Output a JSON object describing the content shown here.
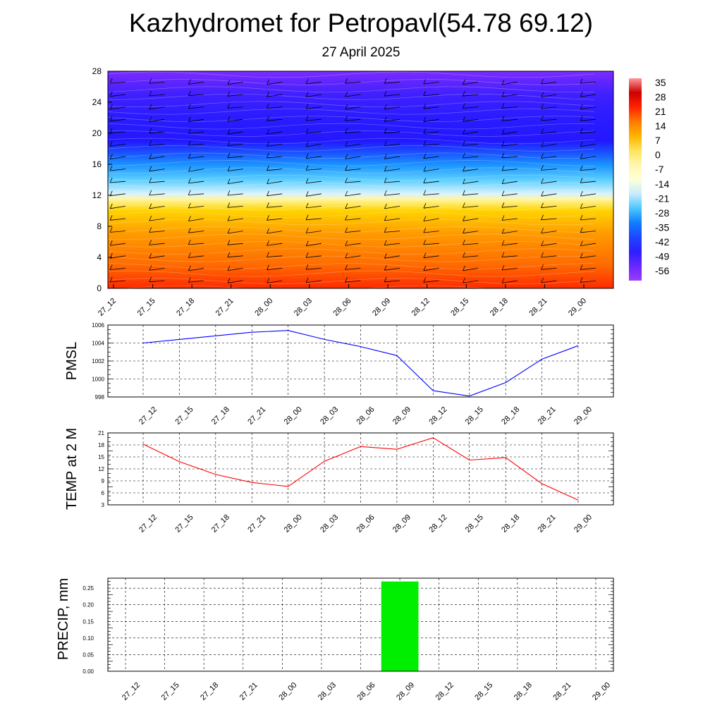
{
  "title": "Kazhydromet for Petropavl(54.78 69.12)",
  "subtitle": "27 April 2025",
  "chart_data": [
    {
      "type": "heatmap",
      "name": "cross-section",
      "x": [
        "27_12",
        "27_15",
        "27_18",
        "27_21",
        "28_00",
        "28_03",
        "28_06",
        "28_09",
        "28_12",
        "28_15",
        "28_18",
        "28_21",
        "29_00"
      ],
      "y_ticks": [
        0,
        4,
        8,
        12,
        16,
        20,
        24,
        28
      ],
      "ylim": [
        0,
        28
      ],
      "colorbar_ticks": [
        "35",
        "28",
        "21",
        "14",
        "7",
        "0",
        "-7",
        "-14",
        "-21",
        "-28",
        "-35",
        "-42",
        "-49",
        "-56"
      ],
      "colormap": [
        "#ff9999",
        "#cc0000",
        "#ff2200",
        "#ff7a00",
        "#ffb400",
        "#ffe35a",
        "#fff7b0",
        "#ffffd8",
        "#c8ecff",
        "#4cc6ff",
        "#0e7eff",
        "#1f46ff",
        "#2b1fff",
        "#6a27ff",
        "#9b3cff"
      ],
      "layer_colors": [
        {
          "level": 0,
          "color": "#ff2a00"
        },
        {
          "level": 3,
          "color": "#ff6a00"
        },
        {
          "level": 7,
          "color": "#ff9a00"
        },
        {
          "level": 10,
          "color": "#ffd300"
        },
        {
          "level": 11.5,
          "color": "#fff6a0"
        },
        {
          "level": 12.2,
          "color": "#d9f2ff"
        },
        {
          "level": 14,
          "color": "#5ccfff"
        },
        {
          "level": 16,
          "color": "#1a91ff"
        },
        {
          "level": 17.5,
          "color": "#1b52ff"
        },
        {
          "level": 19,
          "color": "#2218ff"
        },
        {
          "level": 22,
          "color": "#2a1cff"
        },
        {
          "level": 25,
          "color": "#4020ff"
        },
        {
          "level": 28,
          "color": "#7b2bff"
        }
      ]
    },
    {
      "type": "line",
      "name": "pmsl",
      "ylabel": "PMSL",
      "x": [
        "27_12",
        "27_15",
        "27_18",
        "27_21",
        "28_00",
        "28_03",
        "28_06",
        "28_09",
        "28_12",
        "28_15",
        "28_18",
        "28_21",
        "29_00"
      ],
      "series": [
        {
          "values": [
            1004.0,
            1004.4,
            1004.8,
            1005.2,
            1005.4,
            1004.4,
            1003.6,
            1002.6,
            998.7,
            998.1,
            999.6,
            1002.2,
            1003.7
          ],
          "color": "#0000ff"
        }
      ],
      "ylim": [
        998,
        1006
      ],
      "y_ticks": [
        998,
        1000,
        1002,
        1004,
        1006
      ]
    },
    {
      "type": "line",
      "name": "temp2m",
      "ylabel": "TEMP at 2 M",
      "x": [
        "27_12",
        "27_15",
        "27_18",
        "27_21",
        "28_00",
        "28_03",
        "28_06",
        "28_09",
        "28_12",
        "28_15",
        "28_18",
        "28_21",
        "29_00"
      ],
      "series": [
        {
          "values": [
            18.2,
            13.8,
            10.6,
            8.6,
            7.6,
            13.9,
            17.6,
            16.9,
            19.8,
            14.2,
            14.8,
            8.3,
            4.2
          ],
          "color": "#ff0000"
        }
      ],
      "ylim": [
        3,
        21
      ],
      "y_ticks": [
        3,
        6,
        9,
        12,
        15,
        18,
        21
      ]
    },
    {
      "type": "bar",
      "name": "precip",
      "ylabel": "PRECIP, mm",
      "categories": [
        "27_12",
        "27_15",
        "27_18",
        "27_21",
        "28_00",
        "28_03",
        "28_06",
        "28_09",
        "28_12",
        "28_15",
        "28_18",
        "28_21",
        "29_00"
      ],
      "values": [
        0,
        0,
        0,
        0,
        0,
        0,
        0,
        0.27,
        0,
        0,
        0,
        0,
        0
      ],
      "color": "#00ee00",
      "ylim": [
        0,
        0.28
      ],
      "y_ticks": [
        "0.00",
        "0.05",
        "0.10",
        "0.15",
        "0.20",
        "0.25"
      ]
    }
  ]
}
